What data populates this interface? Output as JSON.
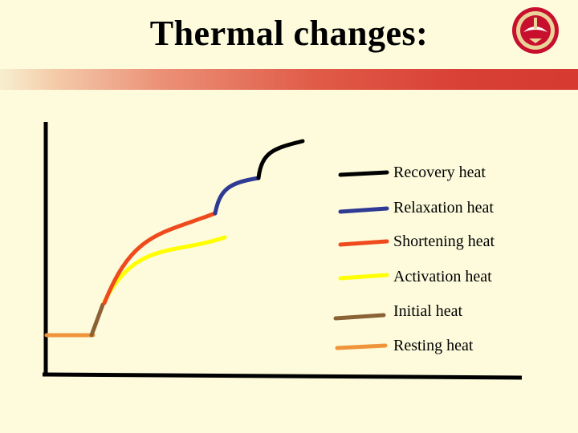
{
  "slide": {
    "title": "Thermal changes:",
    "logo_text": "مؤتة",
    "colors": {
      "background": "#fdfbdc",
      "accent_bar": "#d63a31"
    }
  },
  "legend": [
    {
      "label": "Recovery heat",
      "color": "#000000"
    },
    {
      "label": "Relaxation heat",
      "color": "#2e3a94"
    },
    {
      "label": "Shortening heat",
      "color": "#ee4a1c"
    },
    {
      "label": "Activation heat",
      "color": "#ffff00"
    },
    {
      "label": "Initial heat",
      "color": "#8b6236"
    },
    {
      "label": "Resting heat",
      "color": "#f0943a"
    }
  ]
}
